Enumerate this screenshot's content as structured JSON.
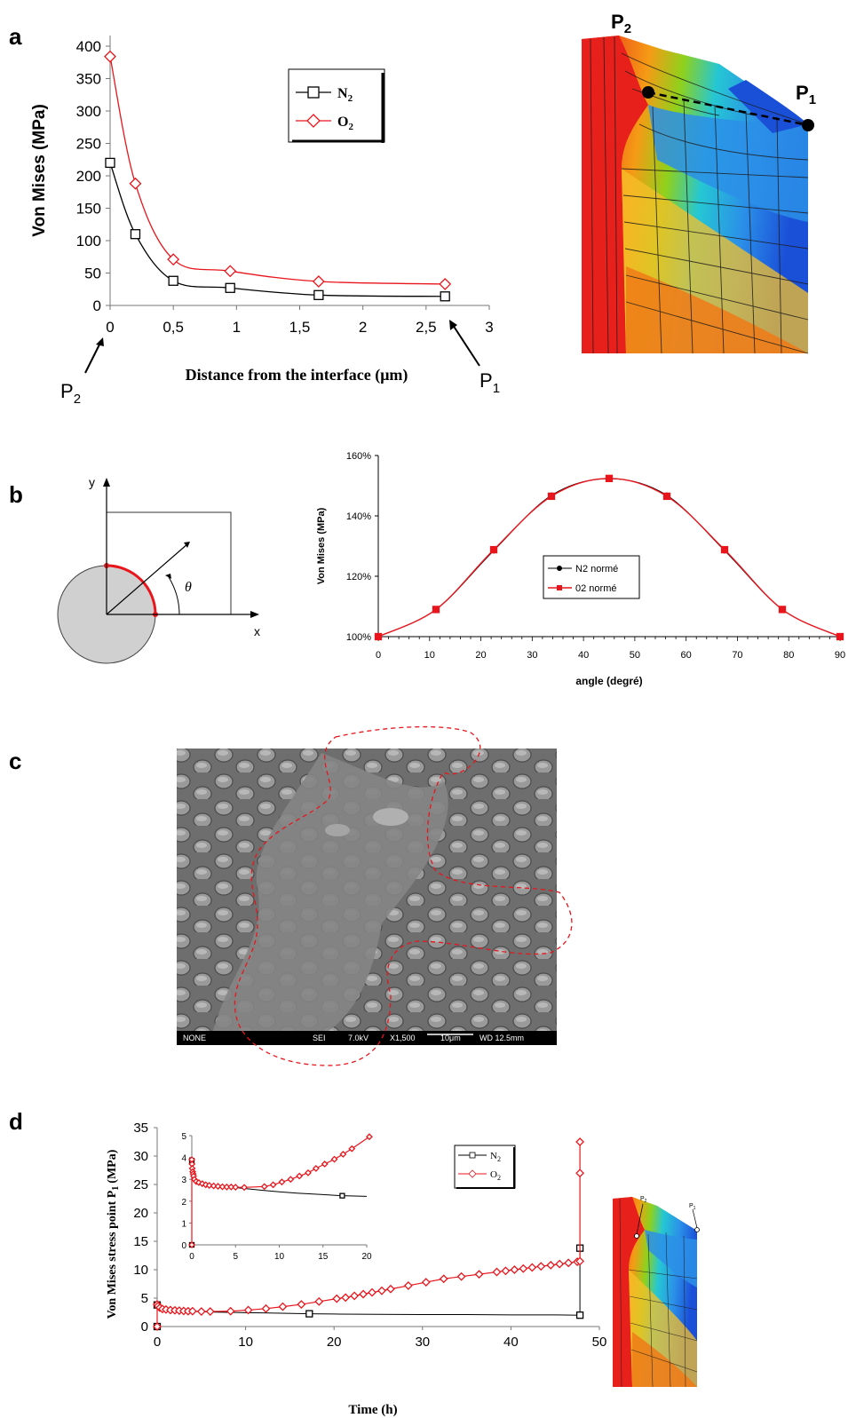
{
  "panels": {
    "a": {
      "letter": "a"
    },
    "b": {
      "letter": "b"
    },
    "c": {
      "letter": "c"
    },
    "d": {
      "letter": "d"
    }
  },
  "fem_a": {
    "p1_label": "P",
    "p1_sub": "1",
    "p2_label": "P",
    "p2_sub": "2"
  },
  "fem_d": {
    "p1_label": "P",
    "p1_sub": "1",
    "p2_label": "P",
    "p2_sub": "2"
  },
  "diagram_b": {
    "x_label": "x",
    "y_label": "y",
    "theta_label": "θ"
  },
  "sem_c": {
    "scale_bar": {
      "detector": "NONE",
      "mode": "SEI",
      "voltage": "7.0kV",
      "magnification": "X1,500",
      "scale": "10μm",
      "wd": "WD 12.5mm"
    }
  },
  "colors": {
    "n2": "#000000",
    "o2": "#e8151c",
    "fem_red": "#e8201c",
    "fem_blue": "#1a4fd8"
  },
  "chart_data": [
    {
      "id": "a",
      "type": "line",
      "ylabel": "Von Mises (MPa)",
      "xlabel": "Distance from the interface (μm)",
      "xlim": [
        0,
        3
      ],
      "ylim": [
        0,
        400
      ],
      "x_ticks": [
        "0",
        "0,5",
        "1",
        "1,5",
        "2",
        "2,5",
        "3"
      ],
      "y_ticks": [
        "0",
        "50",
        "100",
        "150",
        "200",
        "250",
        "300",
        "350",
        "400"
      ],
      "annotations": [
        {
          "label": "P",
          "sub": "2",
          "at": "x=0"
        },
        {
          "label": "P",
          "sub": "1",
          "at": "x=2,65"
        }
      ],
      "legend": {
        "placement": "top-center",
        "entries": [
          {
            "name": "N",
            "sub": "2"
          },
          {
            "name": "O",
            "sub": "2"
          }
        ]
      },
      "series": [
        {
          "name": "N2",
          "color": "#000000",
          "marker": "square",
          "x": [
            0,
            0.2,
            0.5,
            0.95,
            1.65,
            2.65
          ],
          "y": [
            220,
            110,
            38,
            27,
            16,
            14
          ]
        },
        {
          "name": "O2",
          "color": "#e8151c",
          "marker": "diamond",
          "x": [
            0,
            0.2,
            0.5,
            0.95,
            1.65,
            2.65
          ],
          "y": [
            384,
            188,
            71,
            53,
            37,
            33
          ]
        }
      ]
    },
    {
      "id": "b",
      "type": "line",
      "ylabel": "Von Mises (MPa)",
      "xlabel": "angle (degré)",
      "xlim": [
        0,
        90
      ],
      "ylim": [
        100,
        160
      ],
      "x_ticks": [
        "0",
        "10",
        "20",
        "30",
        "40",
        "50",
        "60",
        "70",
        "80",
        "90"
      ],
      "y_ticks": [
        "100%",
        "120%",
        "140%",
        "160%"
      ],
      "legend": {
        "placement": "center",
        "entries": [
          "N2 normé",
          "02 normé"
        ]
      },
      "series": [
        {
          "name": "N2 normé",
          "color": "#000000",
          "marker": "circle",
          "x": [
            0,
            11.25,
            22.5,
            33.75,
            45,
            56.25,
            67.5,
            78.75,
            90
          ],
          "y": [
            100,
            109,
            128.5,
            146.8,
            152.3,
            146.8,
            128.5,
            109,
            100
          ]
        },
        {
          "name": "02 normé",
          "color": "#e8151c",
          "marker": "square",
          "x": [
            0,
            11.25,
            22.5,
            33.75,
            45,
            56.25,
            67.5,
            78.75,
            90
          ],
          "y": [
            100,
            109,
            128.8,
            146.5,
            152.4,
            146.5,
            128.8,
            109,
            100
          ]
        }
      ]
    },
    {
      "id": "d",
      "type": "line",
      "ylabel": "Von Mises stress point P",
      "ylabel_sub": "1",
      "ylabel_unit": "(MPa)",
      "xlabel": "Time (h)",
      "xlim": [
        0,
        50
      ],
      "ylim": [
        0,
        35
      ],
      "x_ticks": [
        "0",
        "10",
        "20",
        "30",
        "40",
        "50"
      ],
      "y_ticks": [
        "0",
        "5",
        "10",
        "15",
        "20",
        "25",
        "30",
        "35"
      ],
      "legend": {
        "placement": "top-right",
        "entries": [
          {
            "name": "N",
            "sub": "2"
          },
          {
            "name": "O",
            "sub": "2"
          }
        ]
      },
      "series": [
        {
          "name": "N2",
          "color": "#000000",
          "marker": "square",
          "x": [
            0,
            0,
            0.1,
            0.3,
            0.6,
            1,
            2,
            4,
            6,
            8,
            10,
            12,
            14,
            17.2,
            20,
            25,
            30,
            35,
            40,
            45,
            47.8,
            47.8
          ],
          "y": [
            0,
            3.8,
            3.5,
            3.2,
            3.0,
            2.9,
            2.75,
            2.65,
            2.55,
            2.5,
            2.45,
            2.4,
            2.35,
            2.25,
            2.2,
            2.15,
            2.1,
            2.1,
            2.05,
            2.05,
            2.0,
            13.8
          ],
          "markers_x": [
            0,
            0,
            17.2,
            47.8,
            47.8
          ],
          "markers_y": [
            0,
            3.8,
            2.25,
            2.0,
            13.8
          ]
        },
        {
          "name": "O2",
          "color": "#e8151c",
          "marker": "diamond",
          "x": [
            0,
            0,
            0.1,
            0.3,
            0.6,
            1,
            1.5,
            2,
            2.5,
            3,
            3.5,
            4,
            5,
            6,
            8.3,
            10.3,
            12.3,
            14.2,
            16.3,
            18.3,
            20.3,
            21.3,
            22.3,
            23.3,
            24.3,
            25.4,
            26.4,
            28.4,
            30.4,
            32.4,
            34.4,
            36.4,
            38.4,
            39.4,
            40.4,
            41.4,
            42.4,
            43.4,
            44.5,
            45.5,
            46.5,
            47.5,
            47.8,
            47.8,
            47.8
          ],
          "y": [
            0,
            3.9,
            3.6,
            3.3,
            3.1,
            3.0,
            2.9,
            2.85,
            2.8,
            2.75,
            2.7,
            2.7,
            2.65,
            2.65,
            2.7,
            2.9,
            3.15,
            3.5,
            3.9,
            4.4,
            4.9,
            5.1,
            5.4,
            5.7,
            6.0,
            6.3,
            6.6,
            7.2,
            7.8,
            8.4,
            8.8,
            9.2,
            9.6,
            9.8,
            10.0,
            10.2,
            10.4,
            10.6,
            10.8,
            11.0,
            11.2,
            11.4,
            11.5,
            27.0,
            32.5
          ]
        },
        {
          "name": "N2 inset",
          "inset": true,
          "color": "#000000",
          "x": [
            0,
            0,
            0.05,
            0.1,
            0.2,
            0.3,
            0.5,
            1,
            2,
            3,
            5,
            8,
            10,
            12,
            15,
            17.2,
            20
          ],
          "y": [
            0,
            3.85,
            3.6,
            3.4,
            3.2,
            3.05,
            2.95,
            2.85,
            2.75,
            2.7,
            2.62,
            2.5,
            2.43,
            2.37,
            2.3,
            2.25,
            2.22
          ]
        },
        {
          "name": "O2 inset",
          "inset": true,
          "color": "#e8151c",
          "x": [
            0,
            0,
            0.02,
            0.05,
            0.1,
            0.15,
            0.2,
            0.3,
            0.5,
            0.8,
            1.2,
            1.6,
            2.0,
            2.5,
            3.0,
            3.5,
            4.0,
            4.5,
            5.0,
            6.0,
            8.3,
            9.3,
            10.3,
            11.3,
            12.3,
            13.3,
            14.2,
            15.2,
            16.3,
            17.3,
            18.3,
            20.3
          ],
          "y": [
            0,
            3.9,
            3.7,
            3.5,
            3.35,
            3.25,
            3.15,
            3.0,
            2.9,
            2.85,
            2.8,
            2.75,
            2.72,
            2.7,
            2.68,
            2.66,
            2.65,
            2.65,
            2.64,
            2.63,
            2.67,
            2.75,
            2.88,
            3.0,
            3.15,
            3.3,
            3.5,
            3.7,
            3.92,
            4.15,
            4.4,
            4.95
          ]
        }
      ],
      "inset": {
        "xlim": [
          0,
          20
        ],
        "ylim": [
          0,
          5
        ],
        "x_ticks": [
          "0",
          "5",
          "10",
          "15",
          "20"
        ],
        "y_ticks": [
          "0",
          "1",
          "2",
          "3",
          "4",
          "5"
        ]
      }
    }
  ]
}
